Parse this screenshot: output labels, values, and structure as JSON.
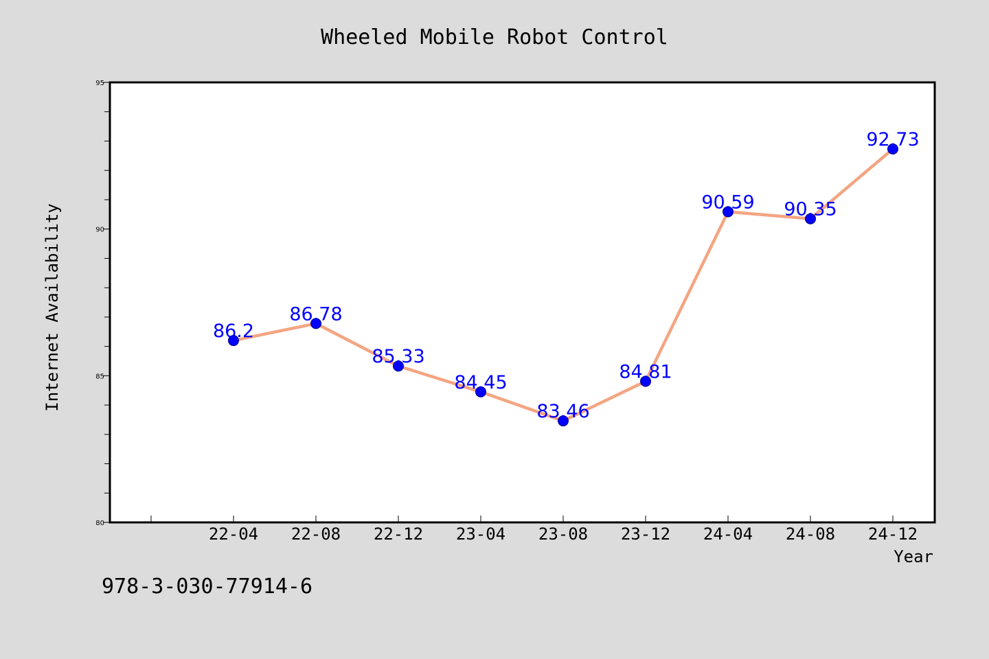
{
  "chart_data": {
    "type": "line",
    "title": "Wheeled Mobile Robot Control",
    "xlabel": "Year",
    "ylabel": "Internet Availability",
    "categories": [
      "22-04",
      "22-08",
      "22-12",
      "23-04",
      "23-08",
      "23-12",
      "24-04",
      "24-08",
      "24-12"
    ],
    "series": [
      {
        "values": [
          86.2,
          86.78,
          85.33,
          84.45,
          83.46,
          84.81,
          90.59,
          90.35,
          92.73
        ],
        "labels": [
          "86.2",
          "86.78",
          "85.33",
          "84.45",
          "83.46",
          "84.81",
          "90.59",
          "90.35",
          "92.73"
        ]
      }
    ],
    "ylim": [
      80,
      95
    ],
    "yticks": [
      80,
      85,
      90,
      95
    ],
    "ytick_labels": [
      "80",
      "85",
      "90",
      "95"
    ],
    "y_minor_step": 1,
    "grid": false,
    "line_color": "#f4a582",
    "marker_color": "#0000ff",
    "label_color": "#0000ff",
    "background_color": "#dcdcdc",
    "plot_background_color": "#ffffff"
  },
  "annotation": {
    "isbn": "978-3-030-77914-6"
  }
}
